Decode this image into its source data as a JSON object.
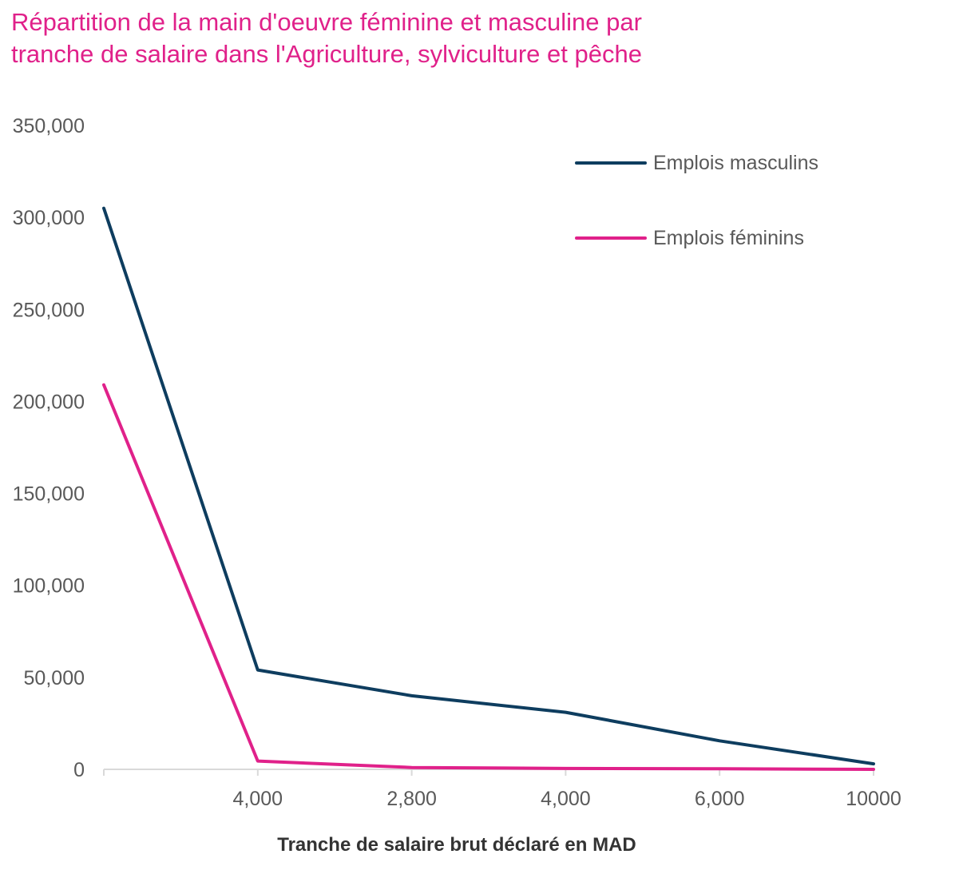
{
  "title_lines": [
    "Répartition de la main d'oeuvre féminine et masculine par",
    "tranche de salaire dans l'Agriculture, sylviculture et pêche"
  ],
  "chart_data": {
    "type": "line",
    "title": "Répartition de la main d'oeuvre féminine et masculine par tranche de salaire dans l'Agriculture, sylviculture et pêche",
    "xlabel": "Tranche de salaire brut déclaré en MAD",
    "ylabel": "",
    "categories": [
      "",
      "4,000",
      "2,800",
      "4,000",
      "6,000",
      "10000"
    ],
    "ylim": [
      0,
      350000
    ],
    "yticks": [
      0,
      50000,
      100000,
      150000,
      200000,
      250000,
      300000,
      350000
    ],
    "ytick_labels": [
      "0",
      "50,000",
      "100,000",
      "150,000",
      "200,000",
      "250,000",
      "300,000",
      "350,000"
    ],
    "grid": false,
    "legend_position": "top-right",
    "series": [
      {
        "name": "Emplois masculins",
        "color": "#0e3d5f",
        "values": [
          305000,
          54000,
          40000,
          31000,
          15500,
          3000
        ]
      },
      {
        "name": "Emplois féminins",
        "color": "#e0218a",
        "values": [
          209000,
          4500,
          1000,
          500,
          300,
          0
        ]
      }
    ]
  }
}
